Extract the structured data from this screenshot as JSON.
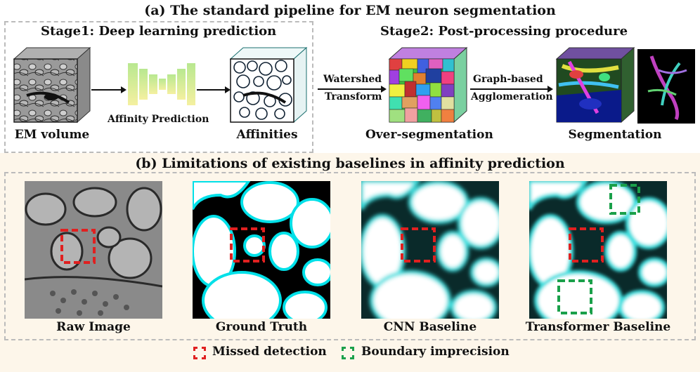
{
  "panel_a": {
    "title": "(a) The standard pipeline for EM neuron segmentation",
    "stage1_title": "Stage1: Deep learning prediction",
    "stage2_title": "Stage2: Post-processing procedure",
    "em_volume_label": "EM volume",
    "affinity_prediction_label": "Affinity Prediction",
    "affinities_label": "Affinities",
    "watershed_label_1": "Watershed",
    "watershed_label_2": "Transform",
    "graph_label_1": "Graph-based",
    "graph_label_2": "Agglomeration",
    "overseg_label": "Over-segmentation",
    "seg_label": "Segmentation"
  },
  "panel_b": {
    "title": "(b) Limitations of existing baselines in affinity prediction",
    "images": [
      {
        "label": "Raw Image"
      },
      {
        "label": "Ground Truth"
      },
      {
        "label": "CNN Baseline"
      },
      {
        "label": "Transformer Baseline"
      }
    ]
  },
  "legend": {
    "missed": "Missed detection",
    "boundary": "Boundary imprecision",
    "missed_color": "#e02020",
    "boundary_color": "#1aa04a"
  }
}
